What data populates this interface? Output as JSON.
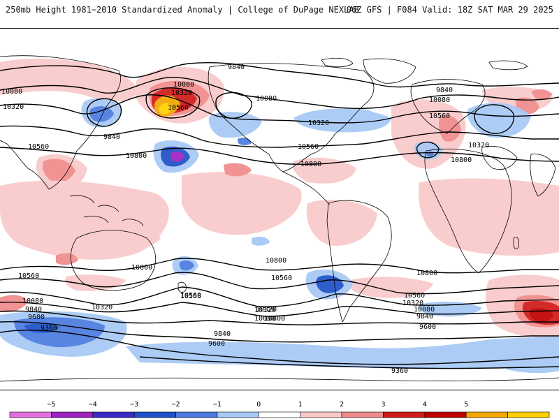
{
  "header": {
    "title_left": "250mb Height 1981−2010 Standardized Anomaly | College of DuPage NEXLAB",
    "title_right": "06Z GFS | F084 Valid: 18Z SAT MAR 29 2025"
  },
  "colorbar": {
    "ticks": [
      "−5",
      "−4",
      "−3",
      "−2",
      "−1",
      "0",
      "1",
      "2",
      "3",
      "4",
      "5"
    ],
    "colors": [
      "#e36fe0",
      "#a020c0",
      "#3a2ac8",
      "#1e50c8",
      "#4a7ae0",
      "#a6c8f5",
      "#ffffff",
      "#f9c9c9",
      "#f08a8a",
      "#d01818",
      "#c00000",
      "#f2a600",
      "#ffd000"
    ]
  },
  "contour_labels": [
    "9840",
    "10080",
    "10320",
    "10560",
    "10080",
    "10320",
    "10560",
    "10800",
    "9840",
    "10080",
    "10320",
    "10560",
    "10800",
    "10320",
    "10560",
    "10800",
    "10080",
    "9840",
    "10560",
    "10320",
    "10800",
    "10560",
    "10800",
    "10560",
    "10320",
    "10080",
    "9840",
    "9600",
    "9360",
    "10800",
    "10560",
    "10320",
    "10080",
    "9840",
    "9600",
    "10800",
    "10560",
    "10320",
    "10080",
    "9840",
    "9600",
    "9360"
  ]
}
